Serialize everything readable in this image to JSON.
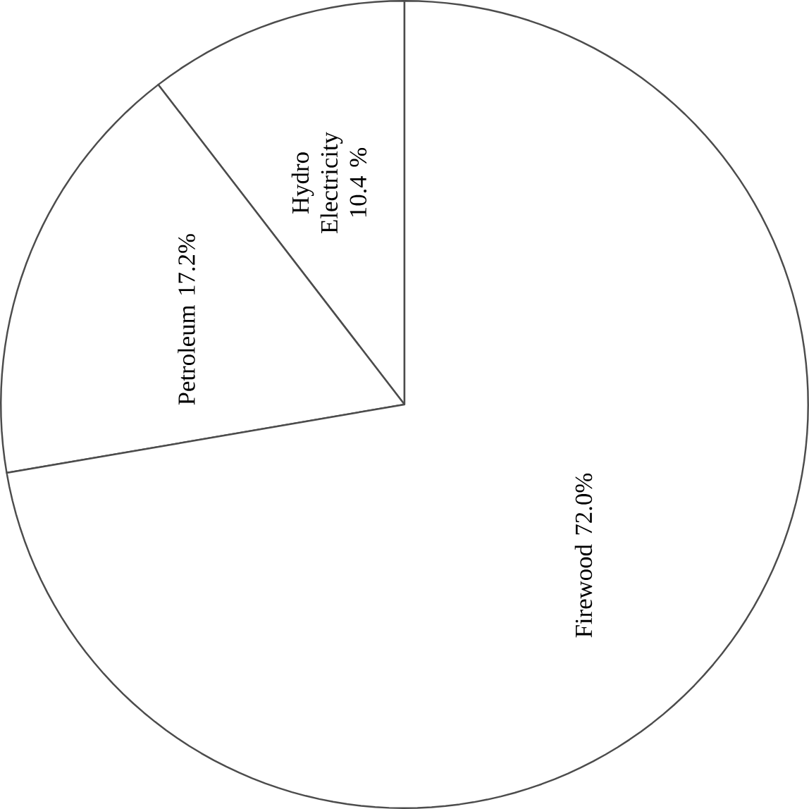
{
  "chart_data": {
    "type": "pie",
    "categories": [
      "Hydro Electricity",
      "Petroleum",
      "Firewood"
    ],
    "values": [
      10.4,
      17.2,
      72.0
    ],
    "value_labels": [
      "10.4 %",
      "17.2%",
      "72.0%"
    ],
    "colors": [
      "#ffffff",
      "#ffffff",
      "#ffffff"
    ]
  }
}
